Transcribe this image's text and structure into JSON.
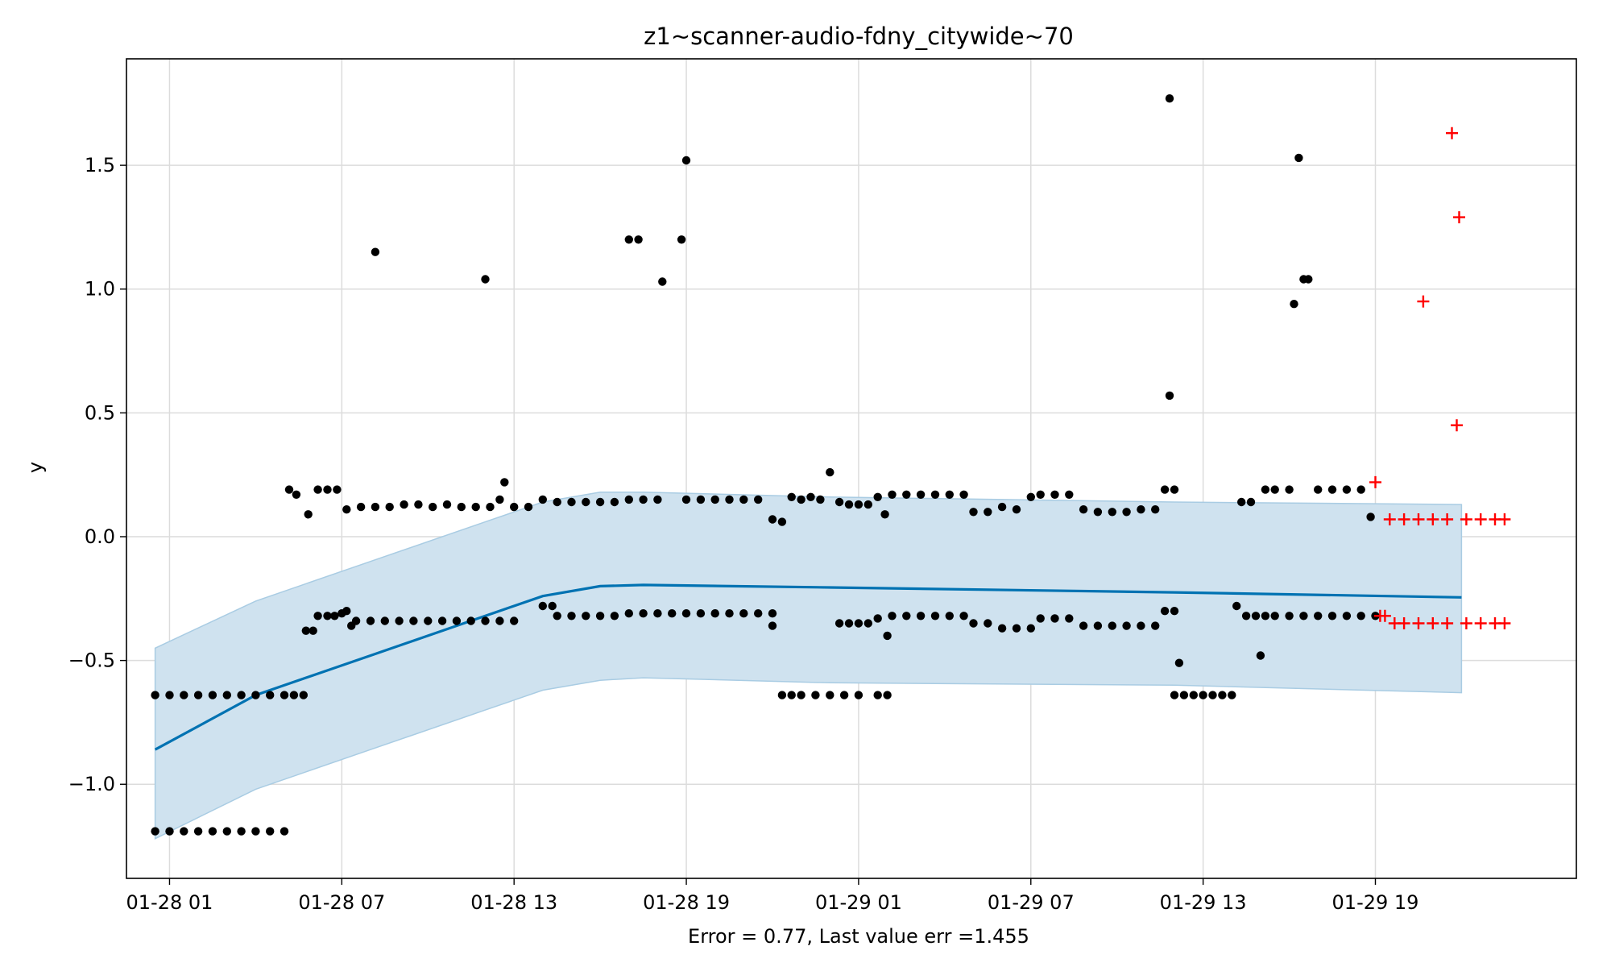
{
  "chart_data": {
    "type": "scatter",
    "title": "z1~scanner-audio-fdny_citywide~70",
    "xlabel": "Error = 0.77, Last value err =1.455",
    "ylabel": "y",
    "grid": true,
    "xlim": [
      "01-27 23:30",
      "01-30 02:00"
    ],
    "ylim": [
      -1.38,
      1.93
    ],
    "x_ticks": [
      "01-28 01",
      "01-28 07",
      "01-28 13",
      "01-28 19",
      "01-29 01",
      "01-29 07",
      "01-29 13",
      "01-29 19"
    ],
    "y_ticks": [
      "−1.0",
      "−0.5",
      "0.0",
      "0.5",
      "1.0",
      "1.5"
    ],
    "y_tick_values": [
      -1.0,
      -0.5,
      0.0,
      0.5,
      1.0,
      1.5
    ],
    "colors": {
      "observed": "#000000",
      "forecast_line": "#0072b2",
      "band_fill": "#cfe2ef",
      "band_edge": "#a9cce3",
      "future": "#ff0000",
      "grid": "#dcdcdc"
    },
    "forecast": {
      "x": [
        "01-28 00:30",
        "01-28 04:00",
        "01-28 08:00",
        "01-28 12:00",
        "01-28 14:00",
        "01-28 16:00",
        "01-28 17:30",
        "01-29 00:00",
        "01-29 12:00",
        "01-29 22:00"
      ],
      "y": [
        -0.86,
        -0.64,
        -0.48,
        -0.32,
        -0.24,
        -0.2,
        -0.195,
        -0.205,
        -0.225,
        -0.245
      ]
    },
    "band": {
      "x": [
        "01-28 00:30",
        "01-28 04:00",
        "01-28 08:00",
        "01-28 12:00",
        "01-28 14:00",
        "01-28 16:00",
        "01-28 17:30",
        "01-29 00:00",
        "01-29 12:00",
        "01-29 22:00"
      ],
      "upper": [
        -0.45,
        -0.26,
        -0.1,
        0.06,
        0.14,
        0.18,
        0.18,
        0.16,
        0.14,
        0.13
      ],
      "lower": [
        -1.22,
        -1.02,
        -0.86,
        -0.7,
        -0.62,
        -0.58,
        -0.57,
        -0.59,
        -0.6,
        -0.63
      ]
    },
    "series": [
      {
        "kind": "observed",
        "points": [
          [
            "01-28 00:30",
            -0.64
          ],
          [
            "01-28 01:00",
            -0.64
          ],
          [
            "01-28 01:30",
            -0.64
          ],
          [
            "01-28 02:00",
            -0.64
          ],
          [
            "01-28 02:30",
            -0.64
          ],
          [
            "01-28 03:00",
            -0.64
          ],
          [
            "01-28 03:30",
            -0.64
          ],
          [
            "01-28 04:00",
            -0.64
          ],
          [
            "01-28 04:30",
            -0.64
          ],
          [
            "01-28 05:00",
            -0.64
          ],
          [
            "01-28 05:20",
            -0.64
          ],
          [
            "01-28 05:40",
            -0.64
          ],
          [
            "01-28 00:30",
            -1.19
          ],
          [
            "01-28 01:00",
            -1.19
          ],
          [
            "01-28 01:30",
            -1.19
          ],
          [
            "01-28 02:00",
            -1.19
          ],
          [
            "01-28 02:30",
            -1.19
          ],
          [
            "01-28 03:00",
            -1.19
          ],
          [
            "01-28 03:30",
            -1.19
          ],
          [
            "01-28 04:00",
            -1.19
          ],
          [
            "01-28 04:30",
            -1.19
          ],
          [
            "01-28 05:00",
            -1.19
          ],
          [
            "01-28 05:10",
            0.19
          ],
          [
            "01-28 05:25",
            0.17
          ],
          [
            "01-28 05:50",
            0.09
          ],
          [
            "01-28 06:10",
            0.19
          ],
          [
            "01-28 06:30",
            0.19
          ],
          [
            "01-28 06:50",
            0.19
          ],
          [
            "01-28 05:45",
            -0.38
          ],
          [
            "01-28 06:00",
            -0.38
          ],
          [
            "01-28 06:10",
            -0.32
          ],
          [
            "01-28 06:30",
            -0.32
          ],
          [
            "01-28 06:45",
            -0.32
          ],
          [
            "01-28 07:00",
            -0.31
          ],
          [
            "01-28 07:10",
            -0.3
          ],
          [
            "01-28 07:20",
            -0.36
          ],
          [
            "01-28 07:30",
            -0.34
          ],
          [
            "01-28 08:00",
            -0.34
          ],
          [
            "01-28 08:30",
            -0.34
          ],
          [
            "01-28 09:00",
            -0.34
          ],
          [
            "01-28 09:30",
            -0.34
          ],
          [
            "01-28 10:00",
            -0.34
          ],
          [
            "01-28 10:30",
            -0.34
          ],
          [
            "01-28 11:00",
            -0.34
          ],
          [
            "01-28 11:30",
            -0.34
          ],
          [
            "01-28 12:00",
            -0.34
          ],
          [
            "01-28 12:30",
            -0.34
          ],
          [
            "01-28 13:00",
            -0.34
          ],
          [
            "01-28 07:10",
            0.11
          ],
          [
            "01-28 07:40",
            0.12
          ],
          [
            "01-28 08:10",
            0.12
          ],
          [
            "01-28 08:40",
            0.12
          ],
          [
            "01-28 09:10",
            0.13
          ],
          [
            "01-28 09:40",
            0.13
          ],
          [
            "01-28 10:10",
            0.12
          ],
          [
            "01-28 10:40",
            0.13
          ],
          [
            "01-28 11:10",
            0.12
          ],
          [
            "01-28 11:40",
            0.12
          ],
          [
            "01-28 12:10",
            0.12
          ],
          [
            "01-28 12:30",
            0.15
          ],
          [
            "01-28 12:40",
            0.22
          ],
          [
            "01-28 13:00",
            0.12
          ],
          [
            "01-28 13:30",
            0.12
          ],
          [
            "01-28 08:10",
            1.15
          ],
          [
            "01-28 12:00",
            1.04
          ],
          [
            "01-28 14:00",
            0.15
          ],
          [
            "01-28 14:30",
            0.14
          ],
          [
            "01-28 15:00",
            0.14
          ],
          [
            "01-28 15:30",
            0.14
          ],
          [
            "01-28 16:00",
            0.14
          ],
          [
            "01-28 16:30",
            0.14
          ],
          [
            "01-28 17:00",
            0.15
          ],
          [
            "01-28 17:30",
            0.15
          ],
          [
            "01-28 18:00",
            0.15
          ],
          [
            "01-28 19:00",
            0.15
          ],
          [
            "01-28 19:30",
            0.15
          ],
          [
            "01-28 20:00",
            0.15
          ],
          [
            "01-28 20:30",
            0.15
          ],
          [
            "01-28 21:00",
            0.15
          ],
          [
            "01-28 21:30",
            0.15
          ],
          [
            "01-28 14:00",
            -0.28
          ],
          [
            "01-28 14:20",
            -0.28
          ],
          [
            "01-28 14:30",
            -0.32
          ],
          [
            "01-28 15:00",
            -0.32
          ],
          [
            "01-28 15:30",
            -0.32
          ],
          [
            "01-28 16:00",
            -0.32
          ],
          [
            "01-28 16:30",
            -0.32
          ],
          [
            "01-28 17:00",
            -0.31
          ],
          [
            "01-28 17:30",
            -0.31
          ],
          [
            "01-28 18:00",
            -0.31
          ],
          [
            "01-28 18:30",
            -0.31
          ],
          [
            "01-28 19:00",
            -0.31
          ],
          [
            "01-28 19:30",
            -0.31
          ],
          [
            "01-28 20:00",
            -0.31
          ],
          [
            "01-28 20:30",
            -0.31
          ],
          [
            "01-28 21:00",
            -0.31
          ],
          [
            "01-28 21:30",
            -0.31
          ],
          [
            "01-28 22:00",
            -0.31
          ],
          [
            "01-28 22:00",
            -0.36
          ],
          [
            "01-28 17:00",
            1.2
          ],
          [
            "01-28 17:20",
            1.2
          ],
          [
            "01-28 18:10",
            1.03
          ],
          [
            "01-28 18:50",
            1.2
          ],
          [
            "01-28 19:00",
            1.52
          ],
          [
            "01-28 22:00",
            0.07
          ],
          [
            "01-28 22:20",
            0.06
          ],
          [
            "01-28 22:40",
            0.16
          ],
          [
            "01-28 23:00",
            0.15
          ],
          [
            "01-28 23:20",
            0.16
          ],
          [
            "01-28 23:40",
            0.15
          ],
          [
            "01-29 00:00",
            0.26
          ],
          [
            "01-29 00:20",
            0.14
          ],
          [
            "01-29 00:40",
            0.13
          ],
          [
            "01-29 01:00",
            0.13
          ],
          [
            "01-29 01:20",
            0.13
          ],
          [
            "01-29 01:40",
            0.16
          ],
          [
            "01-29 01:55",
            0.09
          ],
          [
            "01-28 22:20",
            -0.64
          ],
          [
            "01-28 22:40",
            -0.64
          ],
          [
            "01-28 23:00",
            -0.64
          ],
          [
            "01-28 23:30",
            -0.64
          ],
          [
            "01-29 00:00",
            -0.64
          ],
          [
            "01-29 00:30",
            -0.64
          ],
          [
            "01-29 01:00",
            -0.64
          ],
          [
            "01-29 01:40",
            -0.64
          ],
          [
            "01-29 02:00",
            -0.64
          ],
          [
            "01-29 00:20",
            -0.35
          ],
          [
            "01-29 00:40",
            -0.35
          ],
          [
            "01-29 01:00",
            -0.35
          ],
          [
            "01-29 01:20",
            -0.35
          ],
          [
            "01-29 01:40",
            -0.33
          ],
          [
            "01-29 02:00",
            -0.4
          ],
          [
            "01-29 02:10",
            -0.32
          ],
          [
            "01-29 02:40",
            -0.32
          ],
          [
            "01-29 03:10",
            -0.32
          ],
          [
            "01-29 03:40",
            -0.32
          ],
          [
            "01-29 04:10",
            -0.32
          ],
          [
            "01-29 04:40",
            -0.32
          ],
          [
            "01-29 05:00",
            -0.35
          ],
          [
            "01-29 05:30",
            -0.35
          ],
          [
            "01-29 06:00",
            -0.37
          ],
          [
            "01-29 06:30",
            -0.37
          ],
          [
            "01-29 07:00",
            -0.37
          ],
          [
            "01-29 07:20",
            -0.33
          ],
          [
            "01-29 07:50",
            -0.33
          ],
          [
            "01-29 08:20",
            -0.33
          ],
          [
            "01-29 08:50",
            -0.36
          ],
          [
            "01-29 09:20",
            -0.36
          ],
          [
            "01-29 09:50",
            -0.36
          ],
          [
            "01-29 10:20",
            -0.36
          ],
          [
            "01-29 10:50",
            -0.36
          ],
          [
            "01-29 11:20",
            -0.36
          ],
          [
            "01-29 02:10",
            0.17
          ],
          [
            "01-29 02:40",
            0.17
          ],
          [
            "01-29 03:10",
            0.17
          ],
          [
            "01-29 03:40",
            0.17
          ],
          [
            "01-29 04:10",
            0.17
          ],
          [
            "01-29 04:40",
            0.17
          ],
          [
            "01-29 05:00",
            0.1
          ],
          [
            "01-29 05:30",
            0.1
          ],
          [
            "01-29 06:00",
            0.12
          ],
          [
            "01-29 06:30",
            0.11
          ],
          [
            "01-29 07:00",
            0.16
          ],
          [
            "01-29 07:20",
            0.17
          ],
          [
            "01-29 07:50",
            0.17
          ],
          [
            "01-29 08:20",
            0.17
          ],
          [
            "01-29 08:50",
            0.11
          ],
          [
            "01-29 09:20",
            0.1
          ],
          [
            "01-29 09:50",
            0.1
          ],
          [
            "01-29 10:20",
            0.1
          ],
          [
            "01-29 10:50",
            0.11
          ],
          [
            "01-29 11:20",
            0.11
          ],
          [
            "01-29 11:40",
            0.19
          ],
          [
            "01-29 12:00",
            0.19
          ],
          [
            "01-29 11:50",
            1.77
          ],
          [
            "01-29 11:50",
            0.57
          ],
          [
            "01-29 11:40",
            -0.3
          ],
          [
            "01-29 12:00",
            -0.3
          ],
          [
            "01-29 12:10",
            -0.51
          ],
          [
            "01-29 12:00",
            -0.64
          ],
          [
            "01-29 12:20",
            -0.64
          ],
          [
            "01-29 12:40",
            -0.64
          ],
          [
            "01-29 13:00",
            -0.64
          ],
          [
            "01-29 13:20",
            -0.64
          ],
          [
            "01-29 13:40",
            -0.64
          ],
          [
            "01-29 14:00",
            -0.64
          ],
          [
            "01-29 14:10",
            -0.28
          ],
          [
            "01-29 14:30",
            -0.32
          ],
          [
            "01-29 14:50",
            -0.32
          ],
          [
            "01-29 15:00",
            -0.48
          ],
          [
            "01-29 15:10",
            -0.32
          ],
          [
            "01-29 15:30",
            -0.32
          ],
          [
            "01-29 16:00",
            -0.32
          ],
          [
            "01-29 16:30",
            -0.32
          ],
          [
            "01-29 17:00",
            -0.32
          ],
          [
            "01-29 17:30",
            -0.32
          ],
          [
            "01-29 18:00",
            -0.32
          ],
          [
            "01-29 18:30",
            -0.32
          ],
          [
            "01-29 19:00",
            -0.32
          ],
          [
            "01-29 14:20",
            0.14
          ],
          [
            "01-29 14:40",
            0.14
          ],
          [
            "01-29 15:10",
            0.19
          ],
          [
            "01-29 15:30",
            0.19
          ],
          [
            "01-29 16:00",
            0.19
          ],
          [
            "01-29 16:10",
            0.94
          ],
          [
            "01-29 16:20",
            1.53
          ],
          [
            "01-29 16:30",
            1.04
          ],
          [
            "01-29 16:40",
            1.04
          ],
          [
            "01-29 17:00",
            0.19
          ],
          [
            "01-29 17:30",
            0.19
          ],
          [
            "01-29 18:00",
            0.19
          ],
          [
            "01-29 18:30",
            0.19
          ],
          [
            "01-29 18:50",
            0.08
          ]
        ]
      },
      {
        "kind": "future",
        "points": [
          [
            "01-29 19:00",
            0.22
          ],
          [
            "01-29 19:10",
            -0.32
          ],
          [
            "01-29 19:20",
            -0.32
          ],
          [
            "01-29 19:30",
            0.07
          ],
          [
            "01-29 19:40",
            -0.35
          ],
          [
            "01-29 20:00",
            0.07
          ],
          [
            "01-29 20:00",
            -0.35
          ],
          [
            "01-29 20:30",
            0.07
          ],
          [
            "01-29 20:30",
            -0.35
          ],
          [
            "01-29 20:40",
            0.95
          ],
          [
            "01-29 21:00",
            0.07
          ],
          [
            "01-29 21:00",
            -0.35
          ],
          [
            "01-29 21:30",
            0.07
          ],
          [
            "01-29 21:30",
            -0.35
          ],
          [
            "01-29 21:40",
            1.63
          ],
          [
            "01-29 21:50",
            0.45
          ],
          [
            "01-29 21:55",
            1.29
          ],
          [
            "01-29 22:10",
            0.07
          ],
          [
            "01-29 22:10",
            -0.35
          ],
          [
            "01-29 22:40",
            0.07
          ],
          [
            "01-29 22:40",
            -0.35
          ],
          [
            "01-29 23:10",
            0.07
          ],
          [
            "01-29 23:10",
            -0.35
          ],
          [
            "01-29 23:30",
            0.07
          ],
          [
            "01-29 23:30",
            -0.35
          ]
        ]
      }
    ]
  }
}
